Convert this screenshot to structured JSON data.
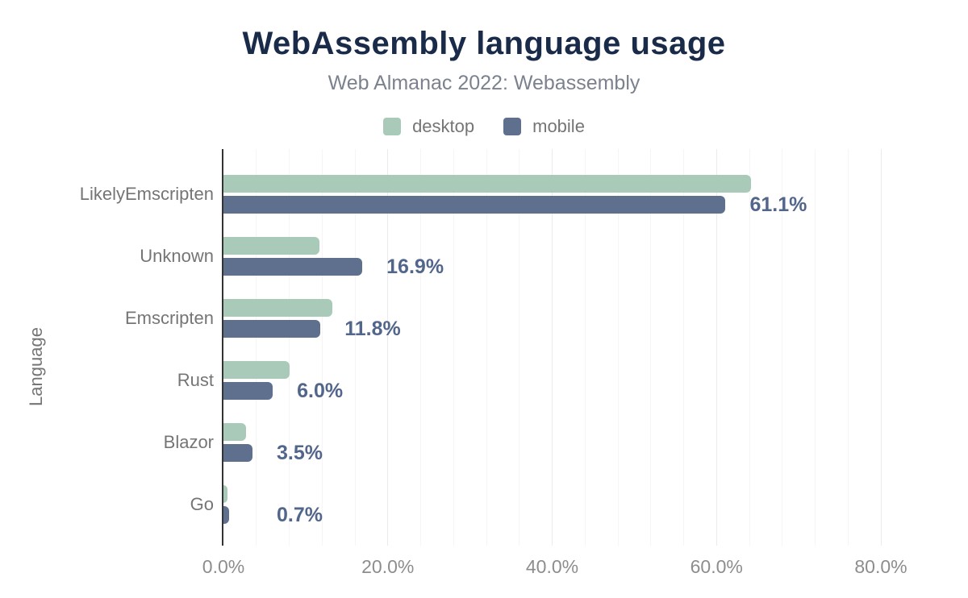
{
  "chart": {
    "title": "WebAssembly language usage",
    "subtitle": "Web Almanac 2022: Webassembly",
    "y_axis_title": "Language"
  },
  "legend": [
    {
      "label": "desktop",
      "color": "#a9cab9"
    },
    {
      "label": "mobile",
      "color": "#5f708f"
    }
  ],
  "chart_data": {
    "type": "bar",
    "orientation": "horizontal",
    "title": "WebAssembly language usage",
    "subtitle": "Web Almanac 2022: Webassembly",
    "xlabel": "",
    "ylabel": "Language",
    "categories": [
      "LikelyEmscripten",
      "Unknown",
      "Emscripten",
      "Rust",
      "Blazor",
      "Go"
    ],
    "series": [
      {
        "name": "desktop",
        "color": "#a9cab9",
        "values": [
          64.2,
          11.7,
          13.3,
          8.0,
          2.7,
          0.5
        ]
      },
      {
        "name": "mobile",
        "color": "#5f708f",
        "values": [
          61.1,
          16.9,
          11.8,
          6.0,
          3.5,
          0.7
        ]
      }
    ],
    "annotations": {
      "series": "mobile",
      "labels": [
        "61.1%",
        "16.9%",
        "11.8%",
        "6.0%",
        "3.5%",
        "0.7%"
      ]
    },
    "x_ticks": [
      "0.0%",
      "20.0%",
      "40.0%",
      "60.0%",
      "80.0%"
    ],
    "x_tick_values": [
      0,
      20,
      40,
      60,
      80
    ],
    "xlim": [
      0,
      80
    ],
    "grid": {
      "minor_step": 4,
      "major_step": 20,
      "visible": true
    },
    "legend_position": "top"
  },
  "colors": {
    "background": "#ffffff",
    "title": "#1a2b49",
    "subtitle": "#7b828e",
    "legend_text": "#757575",
    "category_text": "#757575",
    "axis_text": "#8d8d8d",
    "annotation": "#52668c",
    "axis_line": "#333333",
    "grid_major": "#ebebeb",
    "grid_minor": "#f5f5f5",
    "desktop_bar": "#a9cab9",
    "mobile_bar": "#5f708f"
  }
}
